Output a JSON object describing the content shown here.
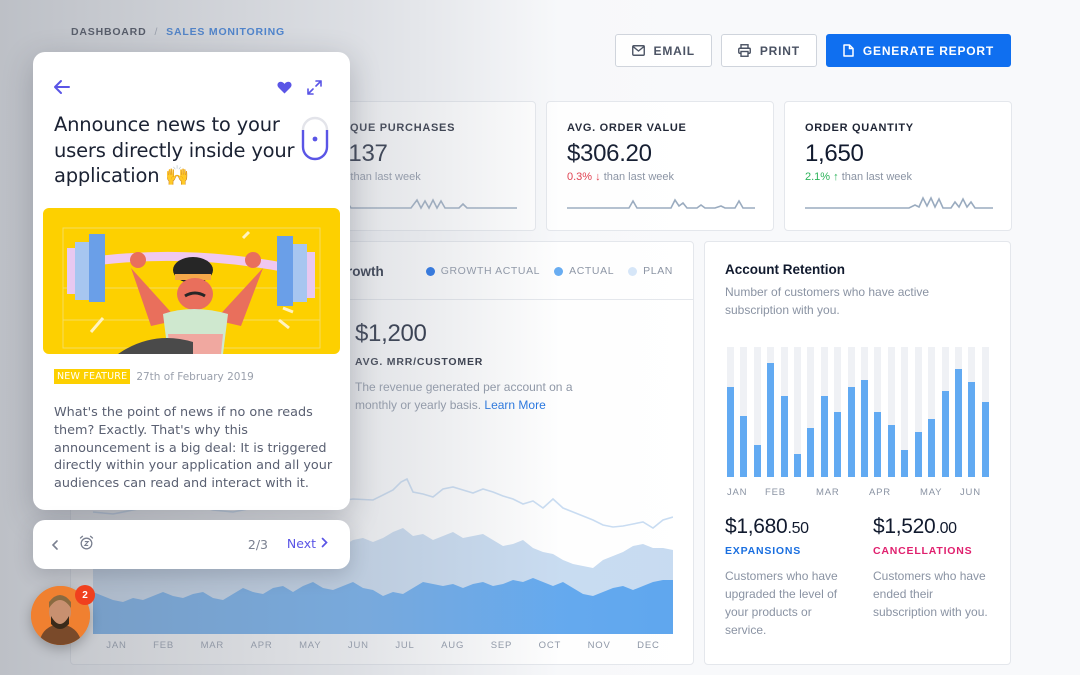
{
  "breadcrumb": {
    "home": "DASHBOARD",
    "separator": "/",
    "current": "SALES MONITORING"
  },
  "toolbar": {
    "email_label": "EMAIL",
    "print_label": "PRINT",
    "generate_label": "GENERATE REPORT"
  },
  "stats": [
    {
      "label": "UNIQUE PURCHASES",
      "visible_label": "QUE PURCHASES",
      "value": "3,137",
      "visible_value": "137",
      "change": "%",
      "change_arrow": "↓",
      "change_suffix": "than last week",
      "trend": "down"
    },
    {
      "label": "AVG. ORDER VALUE",
      "value": "$306.20",
      "change": "0.3%",
      "change_arrow": "↓",
      "change_suffix": "than last week",
      "trend": "down"
    },
    {
      "label": "ORDER QUANTITY",
      "value": "1,650",
      "change": "2.1%",
      "change_arrow": "↑",
      "change_suffix": "than last week",
      "trend": "up"
    }
  ],
  "growth": {
    "title": "rowth",
    "legend": [
      {
        "label": "GROWTH ACTUAL",
        "color": "#1268e6"
      },
      {
        "label": "ACTUAL",
        "color": "#62aaf2"
      },
      {
        "label": "PLAN",
        "color": "#d6e6f8"
      }
    ],
    "mrr_value": "$1,200",
    "mrr_label": "AVG. MRR/CUSTOMER",
    "mrr_desc": "The revenue generated per account on a monthly or yearly basis.",
    "mrr_link": "Learn More",
    "months": [
      "JAN",
      "FEB",
      "MAR",
      "APR",
      "MAY",
      "JUN",
      "JUL",
      "AUG",
      "SEP",
      "OCT",
      "NOV",
      "DEC"
    ]
  },
  "retention": {
    "title": "Account Retention",
    "desc": "Number of customers who have active subscription with you.",
    "bars_pct": [
      69,
      47,
      25,
      88,
      62,
      18,
      38,
      62,
      50,
      69,
      75,
      50,
      40,
      21,
      35,
      45,
      66,
      83,
      73,
      58
    ],
    "axis_labels": [
      "JAN",
      "FEB",
      "MAR",
      "APR",
      "MAY",
      "JUN"
    ],
    "expansions": {
      "value_main": "$1,680",
      "value_cents": ".50",
      "label": "EXPANSIONS",
      "color": "#1a6fe0",
      "desc": "Customers who have upgraded the level of your products or service."
    },
    "cancellations": {
      "value_main": "$1,520",
      "value_cents": ".00",
      "label": "CANCELLATIONS",
      "color": "#e0206e",
      "desc": "Customers who have ended their subscription with you."
    }
  },
  "news": {
    "title": "Announce news to your users directly inside your application 🙌",
    "badge": "NEW FEATURE",
    "date": "27th of February 2019",
    "body": "What's the point of news if no one reads them? Exactly. That's why this announcement is a big deal: It is triggered directly within your application and all your audiences can read and interact with it.",
    "accent": "#5a55e6"
  },
  "news_nav": {
    "count": "2/3",
    "next_label": "Next"
  },
  "avatar": {
    "badge_count": "2"
  },
  "colors": {
    "primary": "#0f6ff0",
    "negative": "#e03a4a",
    "positive": "#2cb35a",
    "widget_accent": "#5a55e6"
  }
}
